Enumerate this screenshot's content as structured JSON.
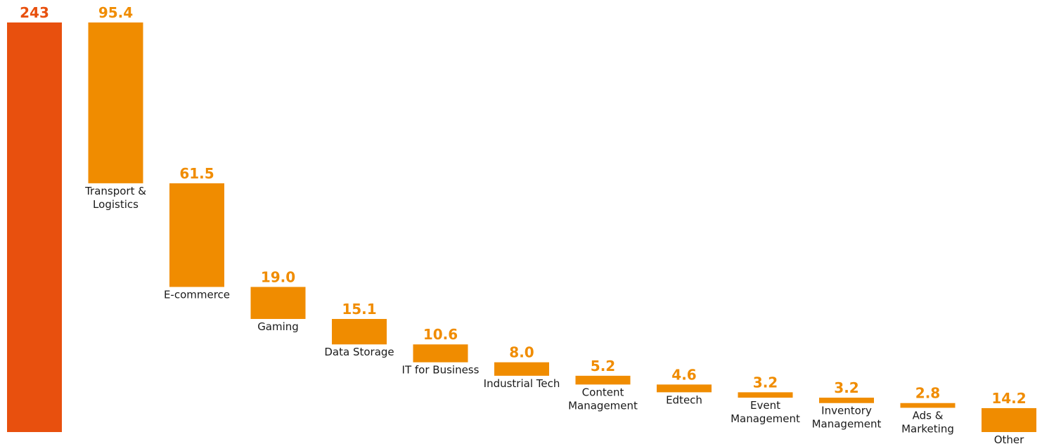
{
  "chart_data": {
    "type": "bar",
    "subtype": "waterfall",
    "total": {
      "label": "",
      "value": 243,
      "value_label": "243"
    },
    "categories": [
      [
        "Transport &",
        "Logistics"
      ],
      [
        "E-commerce"
      ],
      [
        "Gaming"
      ],
      [
        "Data Storage"
      ],
      [
        "IT for Business"
      ],
      [
        "Industrial Tech"
      ],
      [
        "Content",
        "Management"
      ],
      [
        "Edtech"
      ],
      [
        "Event",
        "Management"
      ],
      [
        "Inventory",
        "Management"
      ],
      [
        "Ads &",
        "Marketing"
      ],
      [
        "Other"
      ]
    ],
    "values": [
      95.4,
      61.5,
      19.0,
      15.1,
      10.6,
      8.0,
      5.2,
      4.6,
      3.2,
      3.2,
      2.8,
      14.2
    ],
    "value_labels": [
      "95.4",
      "61.5",
      "19.0",
      "15.1",
      "10.6",
      "8.0",
      "5.2",
      "4.6",
      "3.2",
      "3.2",
      "2.8",
      "14.2"
    ],
    "ylim": [
      0,
      243
    ],
    "grid": false,
    "legend": "none",
    "colors": {
      "total": "#e8500e",
      "segment": "#f08c00"
    }
  }
}
